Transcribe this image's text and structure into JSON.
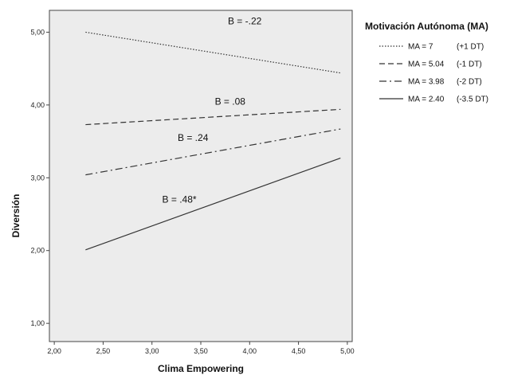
{
  "chart_data": {
    "type": "line",
    "title": "",
    "xlabel": "Clima Empowering",
    "ylabel": "Diversión",
    "xlim": [
      1.95,
      5.05
    ],
    "ylim": [
      0.75,
      5.3
    ],
    "x_ticks": [
      2.0,
      2.5,
      3.0,
      3.5,
      4.0,
      4.5,
      5.0
    ],
    "x_tick_labels": [
      "2,00",
      "2,50",
      "3,00",
      "3,50",
      "4,00",
      "4,50",
      "5,00"
    ],
    "y_ticks": [
      1.0,
      2.0,
      3.0,
      4.0,
      5.0
    ],
    "y_tick_labels": [
      "1,00",
      "2,00",
      "3,00",
      "4,00",
      "5,00"
    ],
    "grid": false,
    "legend_position": "right",
    "legend_title": "Motivación Autónoma (MA)",
    "colors": {
      "plot_background": "#ececec",
      "line": "#333333"
    },
    "series": [
      {
        "name": "MA = 7",
        "detail": "(+1 DT)",
        "style": "dotted",
        "x": [
          2.32,
          4.93
        ],
        "y": [
          5.0,
          4.44
        ],
        "annotation": "B = -.22",
        "annotation_xy": [
          3.95,
          5.15
        ]
      },
      {
        "name": "MA = 5.04",
        "detail": "(-1 DT)",
        "style": "dashed",
        "x": [
          2.32,
          4.93
        ],
        "y": [
          3.73,
          3.94
        ],
        "annotation": "B = .08",
        "annotation_xy": [
          3.8,
          4.05
        ]
      },
      {
        "name": "MA = 3.98",
        "detail": "(-2 DT)",
        "style": "dashdot",
        "x": [
          2.32,
          4.93
        ],
        "y": [
          3.04,
          3.67
        ],
        "annotation": "B = .24",
        "annotation_xy": [
          3.42,
          3.55
        ]
      },
      {
        "name": "MA = 2.40",
        "detail": "(-3.5 DT)",
        "style": "solid",
        "x": [
          2.32,
          4.93
        ],
        "y": [
          2.01,
          3.27
        ],
        "annotation": "B = .48*",
        "annotation_xy": [
          3.28,
          2.7
        ]
      }
    ]
  }
}
